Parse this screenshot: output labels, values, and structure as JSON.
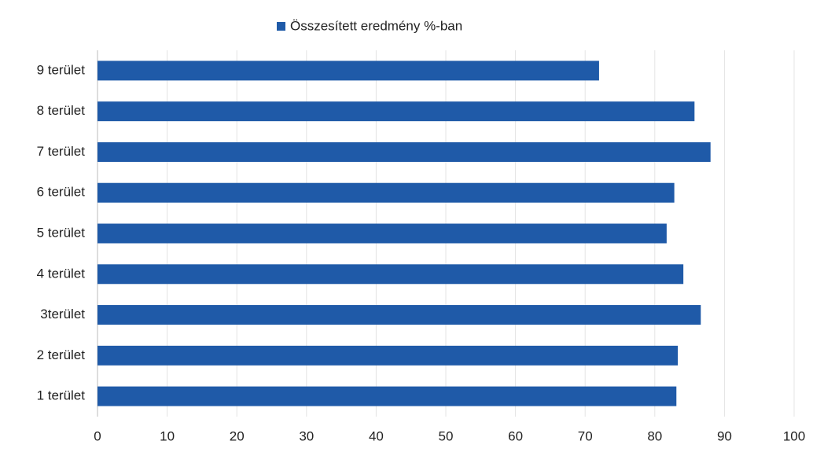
{
  "chart_data": {
    "type": "bar",
    "orientation": "horizontal",
    "legend": "Összesített eredmény %-ban",
    "categories": [
      "1 terület",
      "2 terület",
      "3terület",
      "4 terület",
      "5 terület",
      "6 terület",
      "7 terület",
      "8 terület",
      "9 terület"
    ],
    "values": [
      83.1,
      83.3,
      86.6,
      84.1,
      81.7,
      82.8,
      88.0,
      85.7,
      72.0
    ],
    "color": "#1f5aa8",
    "xlim": [
      0,
      100
    ],
    "xticks": [
      0,
      10,
      20,
      30,
      40,
      50,
      60,
      70,
      80,
      90,
      100
    ],
    "grid": true,
    "legend_position": "top"
  }
}
